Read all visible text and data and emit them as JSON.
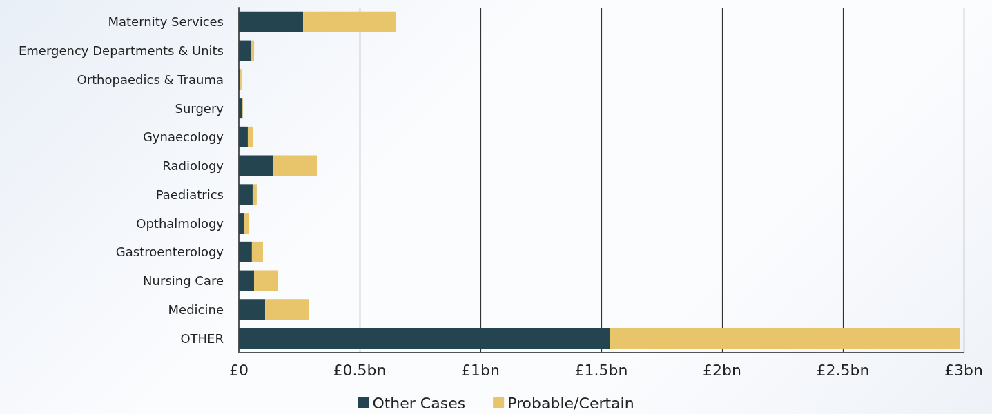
{
  "chart_data": {
    "type": "bar",
    "orientation": "horizontal",
    "stacked": true,
    "categories": [
      "Maternity Services",
      "Emergency Departments & Units",
      "Orthopaedics & Trauma",
      "Surgery",
      "Gynaecology",
      "Radiology",
      "Paediatrics",
      "Opthalmology",
      "Gastroenterology",
      "Nursing Care",
      "Medicine",
      "OTHER"
    ],
    "series": [
      {
        "name": "Other Cases",
        "color": "#244450",
        "values": [
          0.266,
          0.049,
          0.006,
          0.015,
          0.037,
          0.143,
          0.057,
          0.02,
          0.054,
          0.063,
          0.109,
          1.537
        ]
      },
      {
        "name": "Probable/Certain",
        "color": "#e8c46a",
        "values": [
          0.383,
          0.014,
          0.005,
          0.002,
          0.02,
          0.18,
          0.017,
          0.02,
          0.046,
          0.1,
          0.182,
          1.446
        ]
      }
    ],
    "xlim": [
      0,
      3
    ],
    "xticks": [
      {
        "value": 0,
        "label": "£0"
      },
      {
        "value": 0.5,
        "label": "£0.5bn"
      },
      {
        "value": 1,
        "label": "£1bn"
      },
      {
        "value": 1.5,
        "label": "£1.5bn"
      },
      {
        "value": 2,
        "label": "£2bn"
      },
      {
        "value": 2.5,
        "label": "£2.5bn"
      },
      {
        "value": 3,
        "label": "£3bn"
      }
    ],
    "grid": "x",
    "legend": "bottom"
  }
}
